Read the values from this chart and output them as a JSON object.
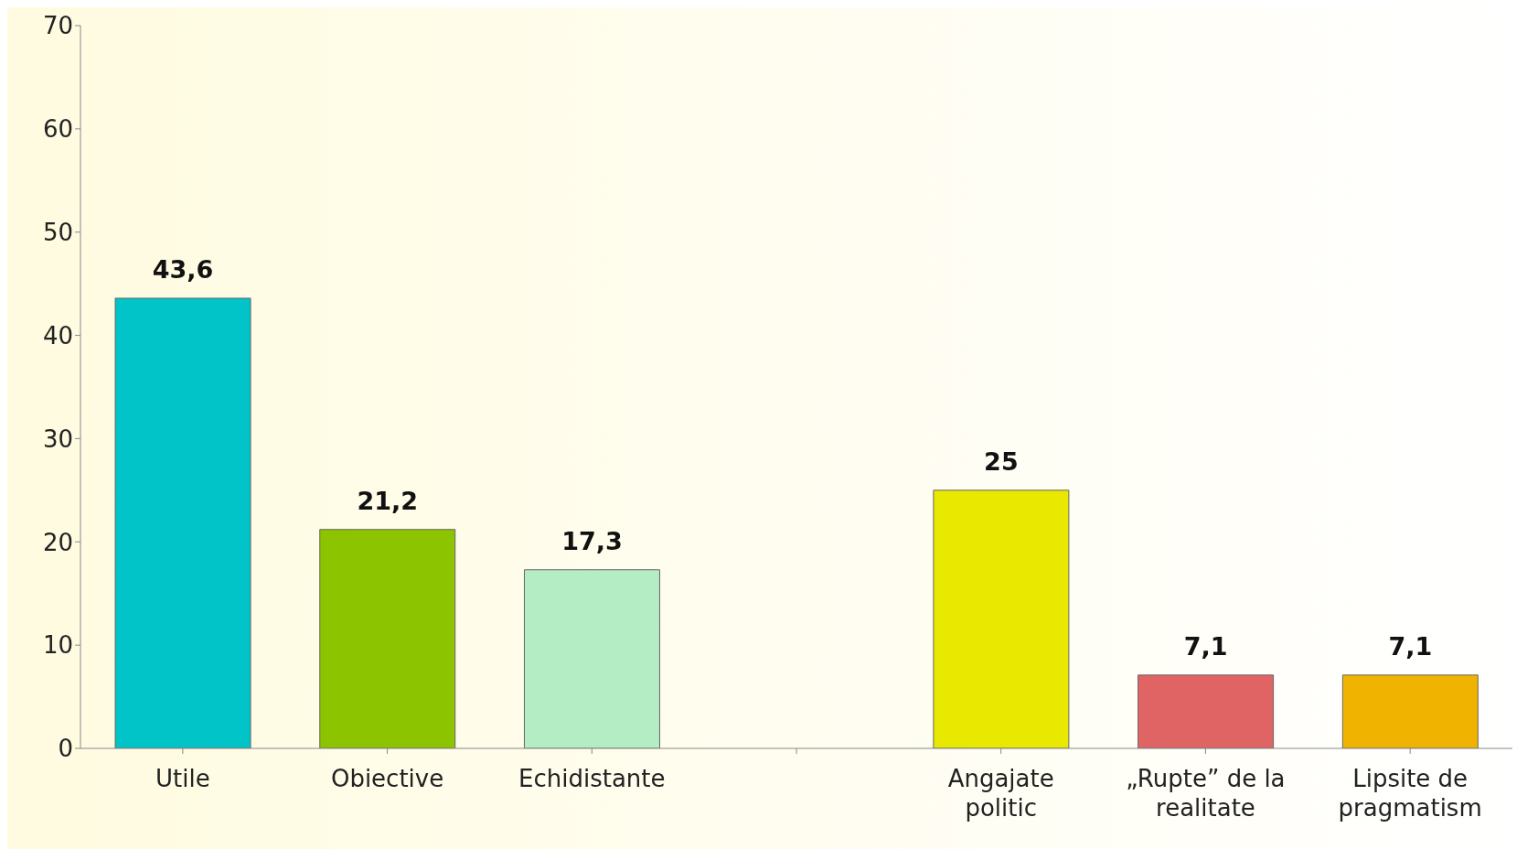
{
  "chart_data": {
    "type": "bar",
    "categories": [
      "Utile",
      "Obiective",
      "Echidistante",
      null,
      "Angajate politic",
      "„Rupte” de la realitate",
      "Lipsite de pragmatism"
    ],
    "values": [
      43.6,
      21.2,
      17.3,
      null,
      25,
      7.1,
      7.1
    ],
    "colors": [
      "#00c4c8",
      "#8cc400",
      "#b4ecc4",
      null,
      "#e8e800",
      "#e06464",
      "#f0b400"
    ],
    "value_labels": [
      "43,6",
      "21,2",
      "17,3",
      null,
      "25",
      "7,1",
      "7,1"
    ],
    "ylim": [
      0,
      70
    ],
    "yticks": [
      0,
      10,
      20,
      30,
      40,
      50,
      60,
      70
    ]
  }
}
